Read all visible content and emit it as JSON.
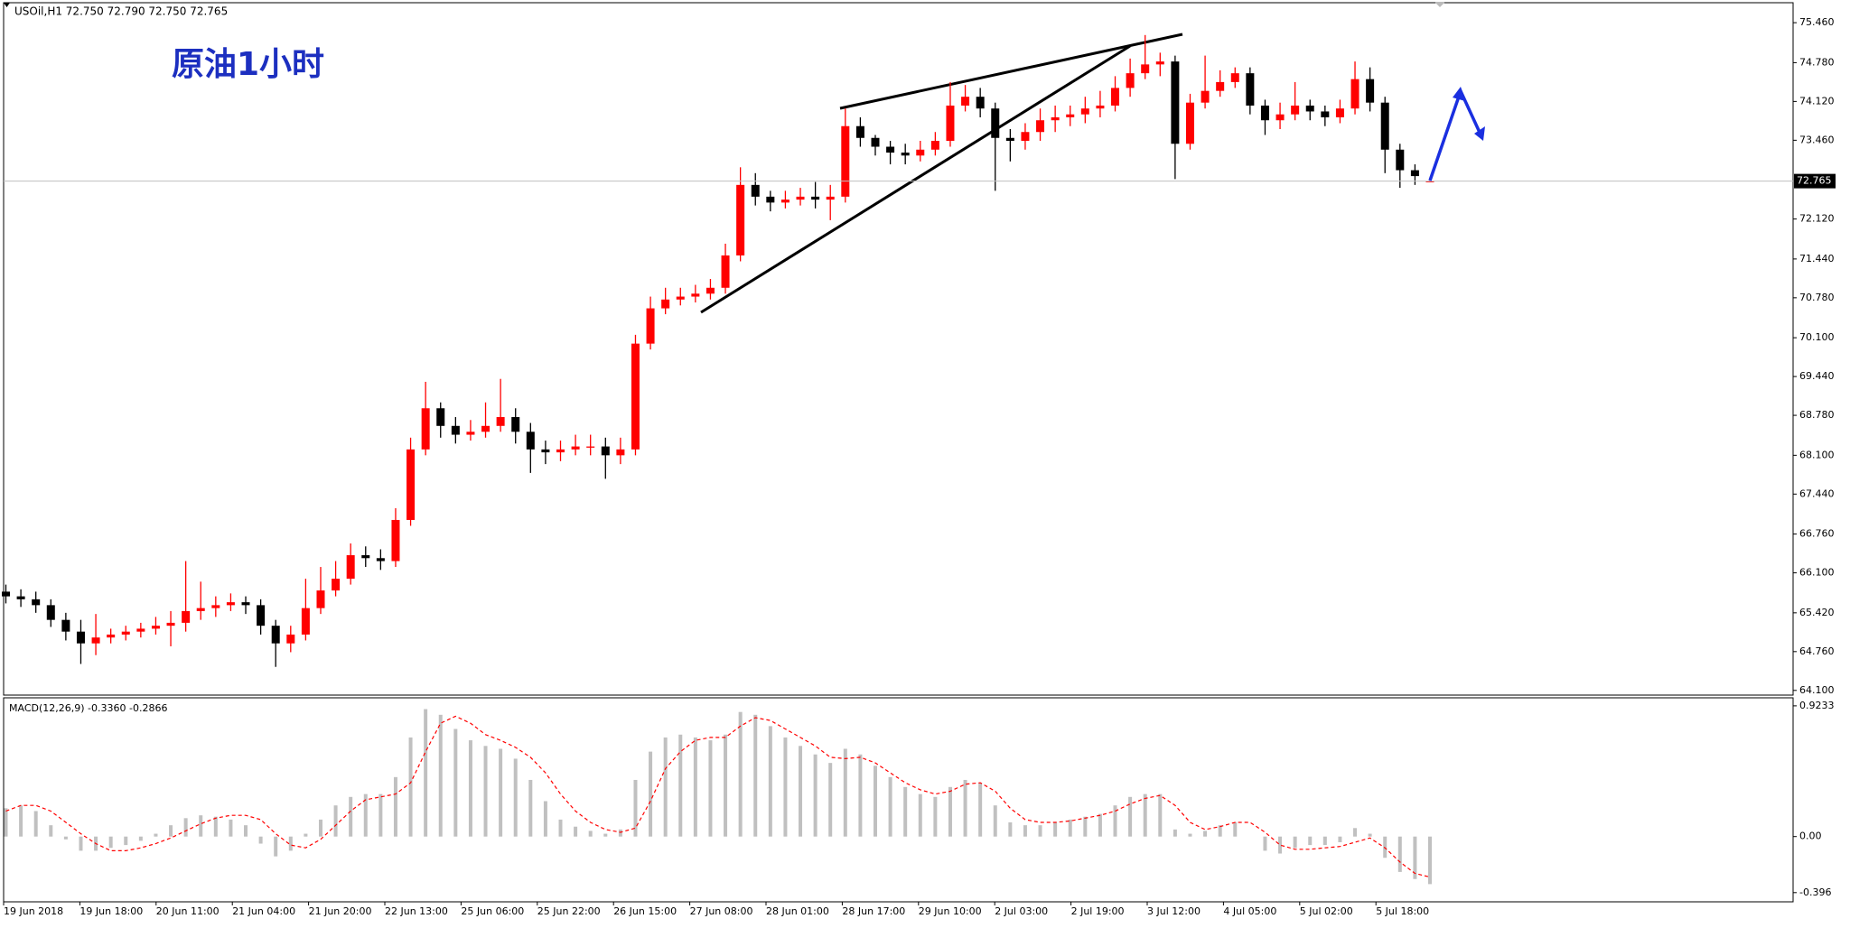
{
  "chart_data": [
    {
      "type": "candlestick",
      "title": "USOil,H1  72.750 72.790 72.750 72.765",
      "annotation": "原油1小时",
      "up_color": "#ff0000",
      "down_color": "#000000",
      "current_price": 72.765,
      "x_labels": [
        "19 Jun 2018",
        "19 Jun 18:00",
        "20 Jun 11:00",
        "21 Jun 04:00",
        "21 Jun 20:00",
        "22 Jun 13:00",
        "25 Jun 06:00",
        "25 Jun 22:00",
        "26 Jun 15:00",
        "27 Jun 08:00",
        "28 Jun 01:00",
        "28 Jun 17:00",
        "29 Jun 10:00",
        "2 Jul 03:00",
        "2 Jul 19:00",
        "3 Jul 12:00",
        "4 Jul 05:00",
        "5 Jul 02:00",
        "5 Jul 18:00"
      ],
      "open": [
        65.78,
        65.7,
        65.65,
        65.55,
        65.3,
        65.1,
        64.9,
        65.0,
        65.05,
        65.1,
        65.15,
        65.2,
        65.25,
        65.45,
        65.5,
        65.55,
        65.6,
        65.55,
        65.2,
        64.9,
        65.05,
        65.5,
        65.8,
        66.0,
        66.4,
        66.35,
        66.3,
        67.0,
        68.2,
        68.9,
        68.6,
        68.45,
        68.5,
        68.6,
        68.75,
        68.5,
        68.2,
        68.15,
        68.2,
        68.25,
        68.25,
        68.1,
        68.2,
        70.0,
        70.6,
        70.75,
        70.8,
        70.85,
        70.95,
        71.5,
        72.7,
        72.5,
        72.4,
        72.45,
        72.5,
        72.45,
        72.5,
        73.7,
        73.5,
        73.35,
        73.25,
        73.2,
        73.3,
        73.45,
        74.05,
        74.2,
        74.0,
        73.5,
        73.45,
        73.6,
        73.8,
        73.85,
        73.9,
        74.0,
        74.05,
        74.35,
        74.6,
        74.75,
        74.8,
        73.4,
        74.1,
        74.3,
        74.45,
        74.6,
        74.05,
        73.8,
        73.9,
        74.05,
        73.95,
        73.85,
        74.0,
        74.5,
        74.1,
        73.3,
        72.95,
        72.75
      ],
      "high": [
        65.9,
        65.82,
        65.78,
        65.65,
        65.42,
        65.3,
        65.4,
        65.15,
        65.2,
        65.25,
        65.35,
        65.45,
        66.3,
        65.95,
        65.7,
        65.75,
        65.7,
        65.65,
        65.3,
        65.2,
        66.0,
        66.2,
        66.3,
        66.6,
        66.55,
        66.5,
        67.2,
        68.4,
        69.35,
        69.0,
        68.75,
        68.7,
        69.0,
        69.4,
        68.9,
        68.65,
        68.35,
        68.35,
        68.45,
        68.45,
        68.4,
        68.4,
        70.15,
        70.8,
        70.95,
        70.95,
        71.0,
        71.1,
        71.7,
        73.0,
        72.9,
        72.6,
        72.6,
        72.65,
        72.75,
        72.7,
        74.0,
        73.85,
        73.55,
        73.45,
        73.4,
        73.45,
        73.6,
        74.45,
        74.4,
        74.35,
        74.1,
        73.65,
        73.75,
        74.0,
        74.05,
        74.05,
        74.2,
        74.3,
        74.55,
        74.85,
        75.25,
        74.95,
        74.9,
        74.25,
        74.9,
        74.65,
        74.7,
        74.7,
        74.15,
        74.1,
        74.45,
        74.15,
        74.05,
        74.15,
        74.8,
        74.7,
        74.2,
        73.4,
        73.05,
        72.79
      ],
      "low": [
        65.58,
        65.52,
        65.42,
        65.18,
        64.95,
        64.55,
        64.7,
        64.9,
        64.95,
        65.0,
        65.05,
        64.85,
        65.1,
        65.3,
        65.35,
        65.45,
        65.4,
        65.05,
        64.5,
        64.75,
        64.95,
        65.4,
        65.7,
        65.9,
        66.2,
        66.15,
        66.2,
        66.9,
        68.1,
        68.4,
        68.3,
        68.35,
        68.4,
        68.5,
        68.3,
        67.8,
        67.95,
        68.0,
        68.1,
        68.1,
        67.7,
        67.95,
        68.1,
        69.9,
        70.5,
        70.65,
        70.7,
        70.75,
        70.85,
        71.4,
        72.35,
        72.25,
        72.3,
        72.35,
        72.3,
        72.1,
        72.4,
        73.35,
        73.2,
        73.05,
        73.05,
        73.1,
        73.2,
        73.35,
        73.95,
        73.85,
        72.6,
        73.1,
        73.3,
        73.45,
        73.6,
        73.7,
        73.75,
        73.85,
        73.95,
        74.2,
        74.5,
        74.55,
        72.8,
        73.3,
        74.0,
        74.2,
        74.35,
        73.9,
        73.55,
        73.65,
        73.8,
        73.8,
        73.7,
        73.75,
        73.9,
        73.95,
        72.9,
        72.65,
        72.7,
        72.75
      ],
      "close": [
        65.7,
        65.65,
        65.55,
        65.3,
        65.1,
        64.9,
        65.0,
        65.05,
        65.1,
        65.15,
        65.2,
        65.25,
        65.45,
        65.5,
        65.55,
        65.6,
        65.55,
        65.2,
        64.9,
        65.05,
        65.5,
        65.8,
        66.0,
        66.4,
        66.35,
        66.3,
        67.0,
        68.2,
        68.9,
        68.6,
        68.45,
        68.5,
        68.6,
        68.75,
        68.5,
        68.2,
        68.15,
        68.2,
        68.25,
        68.25,
        68.1,
        68.2,
        70.0,
        70.6,
        70.75,
        70.8,
        70.85,
        70.95,
        71.5,
        72.7,
        72.5,
        72.4,
        72.45,
        72.5,
        72.45,
        72.5,
        73.7,
        73.5,
        73.35,
        73.25,
        73.2,
        73.3,
        73.45,
        74.05,
        74.2,
        74.0,
        73.5,
        73.45,
        73.6,
        73.8,
        73.85,
        73.9,
        74.0,
        74.05,
        74.35,
        74.6,
        74.75,
        74.8,
        73.4,
        74.1,
        74.3,
        74.45,
        74.6,
        74.05,
        73.8,
        73.9,
        74.05,
        73.95,
        73.85,
        74.0,
        74.5,
        74.1,
        73.3,
        72.95,
        72.85,
        72.765
      ],
      "ylim": [
        64.02,
        75.8
      ],
      "yticks": [
        {
          "value": 64.1,
          "label": "64.100"
        },
        {
          "value": 64.76,
          "label": "64.760"
        },
        {
          "value": 65.42,
          "label": "65.420"
        },
        {
          "value": 66.1,
          "label": "66.100"
        },
        {
          "value": 66.76,
          "label": "66.760"
        },
        {
          "value": 67.44,
          "label": "67.440"
        },
        {
          "value": 68.1,
          "label": "68.100"
        },
        {
          "value": 68.78,
          "label": "68.780"
        },
        {
          "value": 69.44,
          "label": "69.440"
        },
        {
          "value": 70.1,
          "label": "70.100"
        },
        {
          "value": 70.78,
          "label": "70.780"
        },
        {
          "value": 71.44,
          "label": "71.440"
        },
        {
          "value": 72.12,
          "label": "72.120"
        },
        {
          "value": 73.46,
          "label": "73.460"
        },
        {
          "value": 74.12,
          "label": "74.120"
        },
        {
          "value": 74.78,
          "label": "74.780"
        },
        {
          "value": 75.46,
          "label": "75.460"
        }
      ]
    },
    {
      "type": "macd",
      "title": "MACD(12,26,9) -0.3360 -0.2866",
      "histogram_color": "#c0c0c0",
      "signal_color": "#ff0000",
      "histogram": [
        0.2,
        0.22,
        0.18,
        0.08,
        -0.02,
        -0.1,
        -0.1,
        -0.08,
        -0.06,
        -0.03,
        0.02,
        0.08,
        0.13,
        0.15,
        0.14,
        0.12,
        0.08,
        -0.05,
        -0.14,
        -0.1,
        0.02,
        0.12,
        0.22,
        0.28,
        0.3,
        0.3,
        0.42,
        0.7,
        0.9,
        0.86,
        0.76,
        0.68,
        0.64,
        0.62,
        0.55,
        0.4,
        0.25,
        0.12,
        0.07,
        0.04,
        0.02,
        0.05,
        0.4,
        0.6,
        0.7,
        0.72,
        0.7,
        0.68,
        0.72,
        0.88,
        0.86,
        0.78,
        0.7,
        0.64,
        0.58,
        0.52,
        0.62,
        0.58,
        0.5,
        0.42,
        0.35,
        0.3,
        0.28,
        0.35,
        0.4,
        0.38,
        0.22,
        0.1,
        0.08,
        0.08,
        0.1,
        0.12,
        0.14,
        0.16,
        0.22,
        0.28,
        0.3,
        0.3,
        0.05,
        0.02,
        0.04,
        0.08,
        0.1,
        0.0,
        -0.1,
        -0.12,
        -0.08,
        -0.06,
        -0.06,
        -0.04,
        0.06,
        0.02,
        -0.15,
        -0.25,
        -0.3,
        -0.336
      ],
      "signal": [
        0.18,
        0.22,
        0.22,
        0.18,
        0.1,
        0.02,
        -0.05,
        -0.1,
        -0.1,
        -0.08,
        -0.05,
        -0.01,
        0.04,
        0.09,
        0.13,
        0.15,
        0.15,
        0.12,
        0.02,
        -0.06,
        -0.08,
        -0.02,
        0.08,
        0.18,
        0.26,
        0.28,
        0.3,
        0.38,
        0.6,
        0.8,
        0.85,
        0.8,
        0.72,
        0.68,
        0.63,
        0.56,
        0.45,
        0.3,
        0.18,
        0.1,
        0.05,
        0.03,
        0.06,
        0.25,
        0.48,
        0.6,
        0.68,
        0.7,
        0.7,
        0.78,
        0.84,
        0.82,
        0.76,
        0.7,
        0.64,
        0.56,
        0.55,
        0.56,
        0.52,
        0.45,
        0.38,
        0.33,
        0.3,
        0.32,
        0.37,
        0.38,
        0.32,
        0.2,
        0.12,
        0.1,
        0.1,
        0.11,
        0.13,
        0.15,
        0.18,
        0.23,
        0.27,
        0.29,
        0.22,
        0.1,
        0.05,
        0.07,
        0.1,
        0.1,
        0.03,
        -0.06,
        -0.09,
        -0.09,
        -0.08,
        -0.07,
        -0.04,
        -0.01,
        -0.08,
        -0.18,
        -0.26,
        -0.2866
      ],
      "ylim": [
        -0.461,
        0.98
      ],
      "yticks": [
        0.9233,
        {
          "value": 0,
          "label": "0.00"
        },
        -0.396
      ]
    }
  ]
}
